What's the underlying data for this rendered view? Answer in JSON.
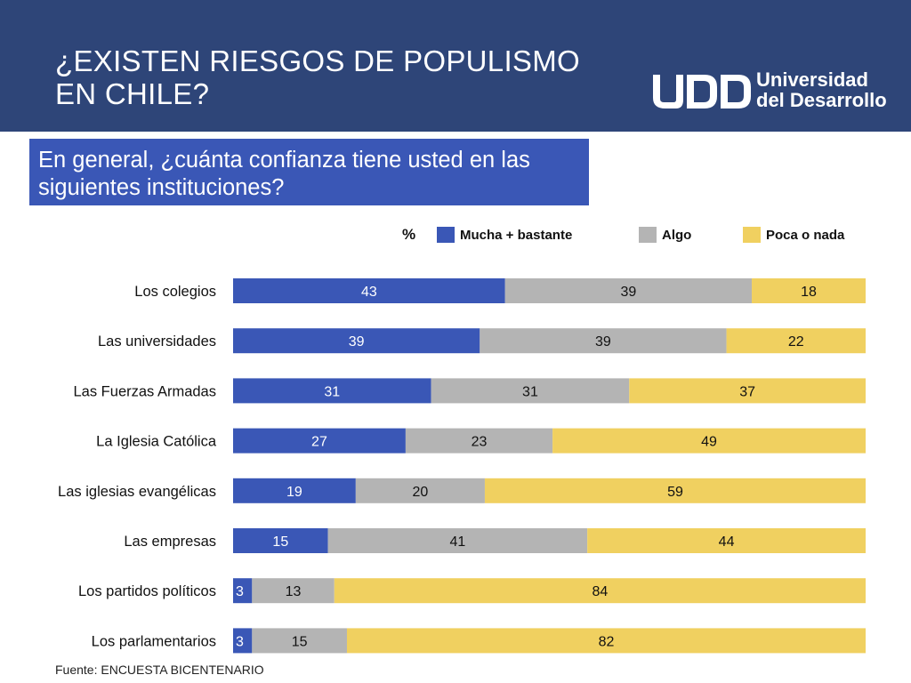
{
  "header": {
    "title_line1": "¿EXISTEN RIESGOS DE POPULISMO",
    "title_line2": "EN CHILE?",
    "logo_line1": "Universidad",
    "logo_line2": "del Desarrollo",
    "logo_mark": "UDD"
  },
  "question": {
    "line1": "En general, ¿cuánta confianza tiene usted en las",
    "line2": "siguientes instituciones?"
  },
  "chart_data": {
    "type": "bar",
    "orientation": "horizontal",
    "stacked": true,
    "unit_label": "%",
    "categories": [
      "Los colegios",
      "Las universidades",
      "Las Fuerzas Armadas",
      "La Iglesia Católica",
      "Las iglesias evangélicas",
      "Las empresas",
      "Los partidos políticos",
      "Los parlamentarios"
    ],
    "series": [
      {
        "name": "Mucha + bastante",
        "color": "#3a57b6",
        "values": [
          43,
          39,
          31,
          27,
          19,
          15,
          3,
          3
        ]
      },
      {
        "name": "Algo",
        "color": "#b4b4b4",
        "values": [
          39,
          39,
          31,
          23,
          20,
          41,
          13,
          15
        ]
      },
      {
        "name": "Poca o nada",
        "color": "#f0d060",
        "values": [
          18,
          22,
          37,
          49,
          59,
          44,
          84,
          82
        ]
      }
    ],
    "legend": "top",
    "grid": false
  },
  "footer": {
    "source": "Fuente: ENCUESTA BICENTENARIO"
  }
}
